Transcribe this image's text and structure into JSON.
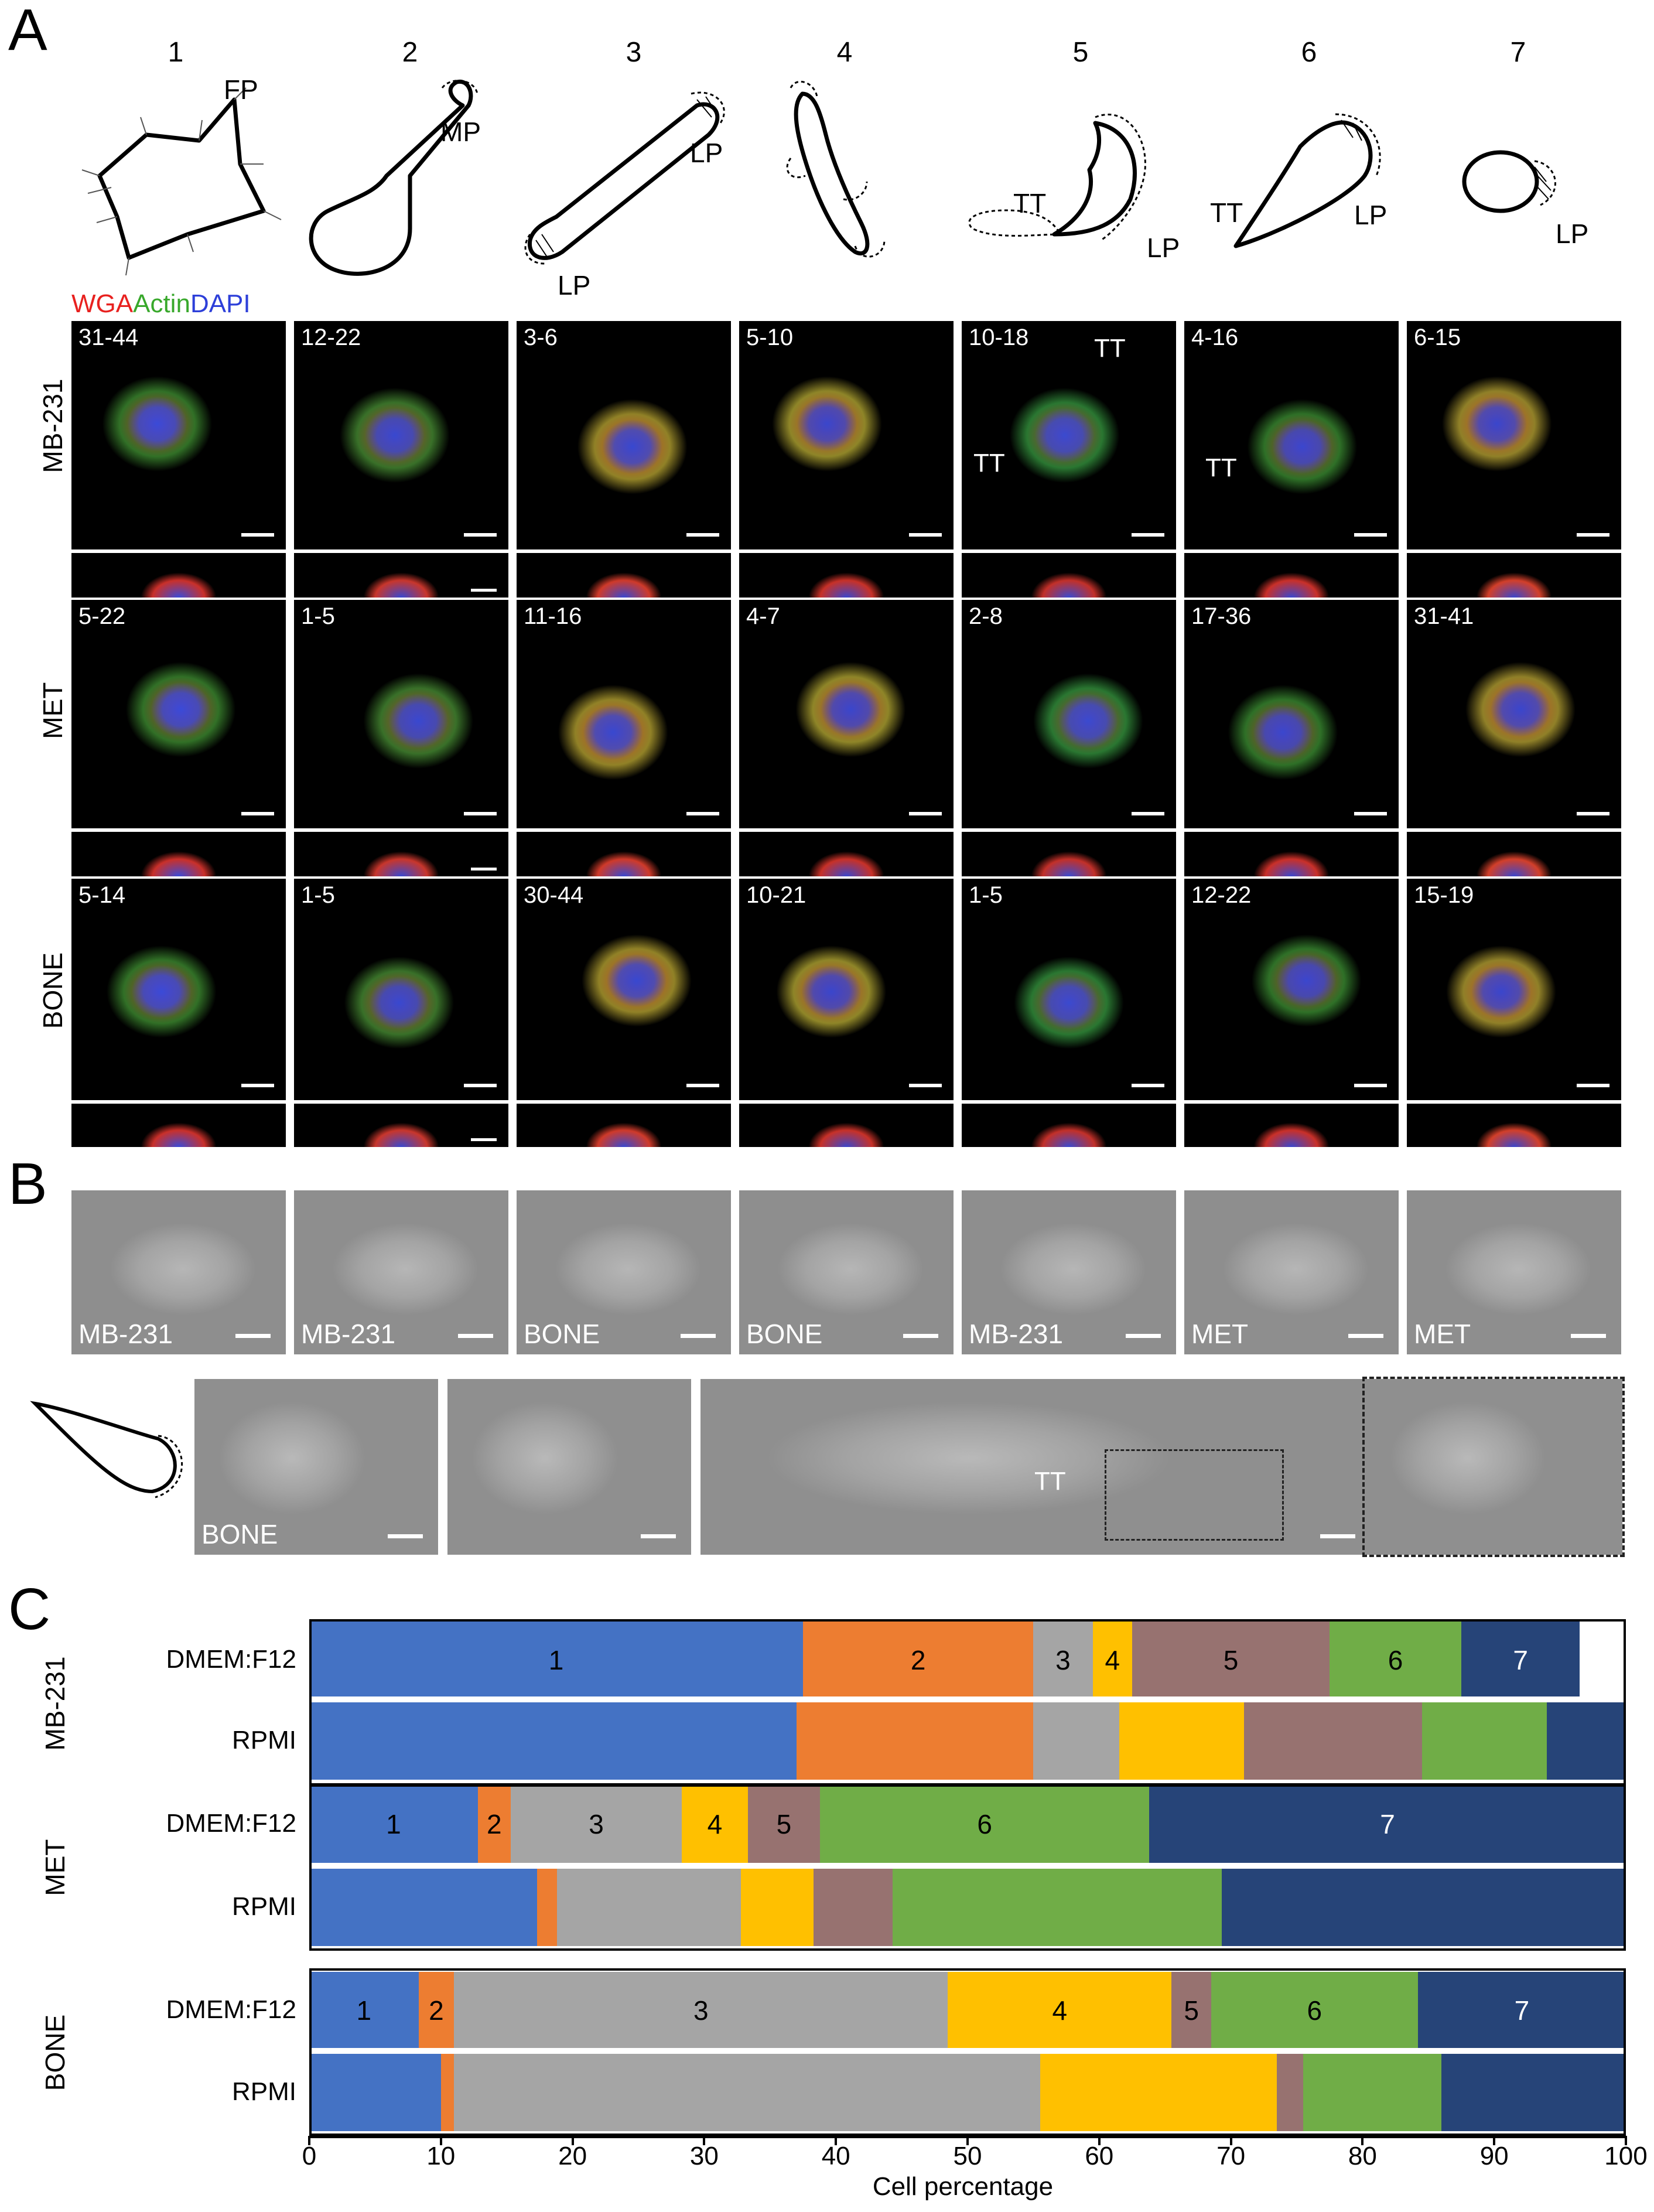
{
  "panel_a": {
    "letter": "A",
    "columns": [
      "1",
      "2",
      "3",
      "4",
      "5",
      "6",
      "7"
    ],
    "sketch_labels": {
      "fp": "FP",
      "mp": "MP",
      "lp3a": "LP",
      "lp3b": "LP",
      "tt5": "TT",
      "lp5": "LP",
      "tt6": "TT",
      "lp6": "LP",
      "lp7": "LP"
    },
    "stain_legend": {
      "wga": "WGA",
      "actin": "Actin",
      "dapi": "DAPI",
      "wga_color": "#e8211f",
      "actin_color": "#38a82b",
      "dapi_color": "#2d3fd9"
    },
    "rows": [
      {
        "label": "MB-231",
        "tiles": [
          "31-44",
          "12-22",
          "3-6",
          "5-10",
          "10-18",
          "4-16",
          "6-15"
        ]
      },
      {
        "label": "MET",
        "tiles": [
          "5-22",
          "1-5",
          "11-16",
          "4-7",
          "2-8",
          "17-36",
          "31-41"
        ]
      },
      {
        "label": "BONE",
        "tiles": [
          "5-14",
          "1-5",
          "30-44",
          "10-21",
          "1-5",
          "12-22",
          "15-19"
        ]
      }
    ],
    "tt_labels": [
      "TT",
      "TT",
      "TT"
    ]
  },
  "panel_b": {
    "letter": "B",
    "row1": [
      "MB-231",
      "MB-231",
      "BONE",
      "BONE",
      "MB-231",
      "MET",
      "MET"
    ],
    "row2": [
      "BONE",
      "",
      "",
      ""
    ],
    "tt_label": "TT"
  },
  "panel_c": {
    "letter": "C",
    "x_axis_title": "Cell percentage",
    "x_ticks": [
      "0",
      "10",
      "20",
      "30",
      "40",
      "50",
      "60",
      "70",
      "80",
      "90",
      "100"
    ]
  },
  "chart_data": {
    "type": "bar",
    "orientation": "horizontal-stacked",
    "xlabel": "Cell percentage",
    "xlim": [
      0,
      100
    ],
    "categories_shown": [
      "1",
      "2",
      "3",
      "4",
      "5",
      "6",
      "7"
    ],
    "colors": [
      "#4472c4",
      "#ed7d31",
      "#a5a5a5",
      "#ffc000",
      "#977270",
      "#70ad47",
      "#264478"
    ],
    "groups": [
      {
        "name": "MB-231",
        "bars": [
          {
            "medium": "DMEM:F12",
            "values": [
              37.5,
              17.5,
              4.5,
              3.0,
              15.0,
              10.0,
              9.0
            ],
            "labeled": true
          },
          {
            "medium": "RPMI",
            "values": [
              37.0,
              18.0,
              6.5,
              9.5,
              13.5,
              9.5,
              6.0
            ],
            "labeled": false
          }
        ]
      },
      {
        "name": "MET",
        "bars": [
          {
            "medium": "DMEM:F12",
            "values": [
              12.8,
              2.5,
              13.0,
              5.0,
              5.5,
              25.0,
              36.2
            ],
            "labeled": true
          },
          {
            "medium": "RPMI",
            "values": [
              17.3,
              1.5,
              14.0,
              5.5,
              6.0,
              25.0,
              30.7
            ],
            "labeled": false
          }
        ]
      },
      {
        "name": "BONE",
        "bars": [
          {
            "medium": "DMEM:F12",
            "values": [
              8.3,
              2.7,
              37.5,
              17.0,
              3.0,
              15.7,
              15.8
            ],
            "labeled": true
          },
          {
            "medium": "RPMI",
            "values": [
              10.0,
              1.0,
              44.5,
              18.0,
              2.0,
              10.5,
              14.0
            ],
            "labeled": false
          }
        ]
      }
    ]
  }
}
